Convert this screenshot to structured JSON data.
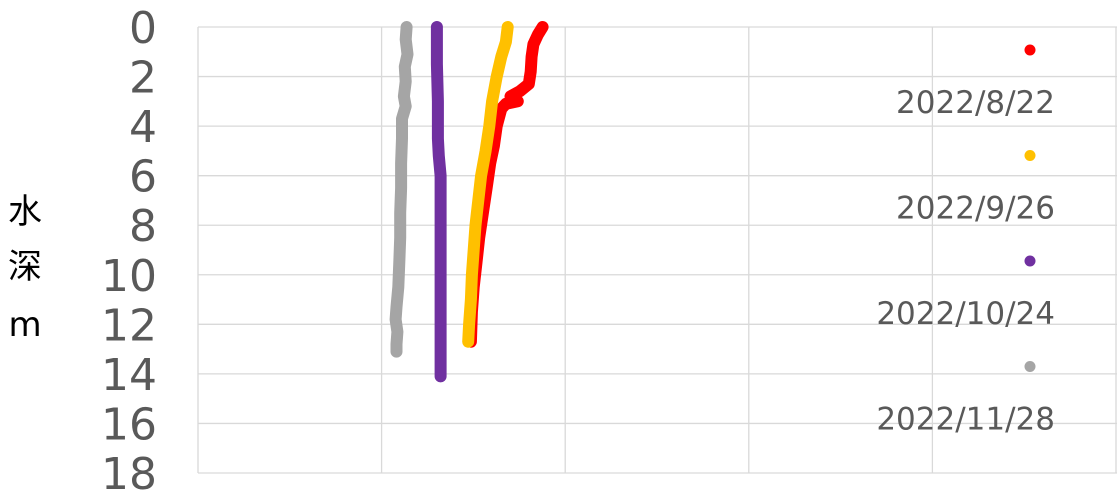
{
  "chart_data": {
    "type": "scatter",
    "ylabel": [
      "水",
      "深",
      "m"
    ],
    "ylim": [
      0,
      18
    ],
    "y_reversed": true,
    "y_ticks": [
      "0",
      "2",
      "4",
      "6",
      "8",
      "10",
      "12",
      "14",
      "16",
      "18"
    ],
    "x_ticks_shown": false,
    "grid": true,
    "legend_position": "right",
    "series": [
      {
        "name": "2022/8/22",
        "color": "#ff0000",
        "points": [
          [
            0.375,
            0
          ],
          [
            0.37,
            0.3
          ],
          [
            0.365,
            0.7
          ],
          [
            0.363,
            1.2
          ],
          [
            0.362,
            1.8
          ],
          [
            0.36,
            2.3
          ],
          [
            0.35,
            2.6
          ],
          [
            0.34,
            2.8
          ],
          [
            0.348,
            3.0
          ],
          [
            0.335,
            3.1
          ],
          [
            0.33,
            3.3
          ],
          [
            0.325,
            4.0
          ],
          [
            0.322,
            4.8
          ],
          [
            0.318,
            5.5
          ],
          [
            0.314,
            6.5
          ],
          [
            0.31,
            7.5
          ],
          [
            0.306,
            8.5
          ],
          [
            0.303,
            9.5
          ],
          [
            0.3,
            10.5
          ],
          [
            0.298,
            11.5
          ],
          [
            0.297,
            12.7
          ]
        ]
      },
      {
        "name": "2022/9/26",
        "color": "#ffc000",
        "points": [
          [
            0.337,
            0
          ],
          [
            0.335,
            0.6
          ],
          [
            0.33,
            1.2
          ],
          [
            0.325,
            2.0
          ],
          [
            0.32,
            3.0
          ],
          [
            0.317,
            4.0
          ],
          [
            0.313,
            5.0
          ],
          [
            0.308,
            6.0
          ],
          [
            0.305,
            7.0
          ],
          [
            0.302,
            8.0
          ],
          [
            0.3,
            9.0
          ],
          [
            0.298,
            10.0
          ],
          [
            0.297,
            11.0
          ],
          [
            0.295,
            12.0
          ],
          [
            0.294,
            12.7
          ]
        ]
      },
      {
        "name": "2022/10/24",
        "color": "#7030a0",
        "points": [
          [
            0.26,
            0
          ],
          [
            0.26,
            1.5
          ],
          [
            0.261,
            3.0
          ],
          [
            0.261,
            4.5
          ],
          [
            0.262,
            5.2
          ],
          [
            0.264,
            6.0
          ],
          [
            0.264,
            7.5
          ],
          [
            0.264,
            9.0
          ],
          [
            0.264,
            10.5
          ],
          [
            0.264,
            12.0
          ],
          [
            0.264,
            13.2
          ],
          [
            0.264,
            14.1
          ]
        ]
      },
      {
        "name": "2022/11/28",
        "color": "#a5a5a5",
        "points": [
          [
            0.227,
            0
          ],
          [
            0.226,
            0.5
          ],
          [
            0.228,
            1.1
          ],
          [
            0.225,
            1.6
          ],
          [
            0.226,
            2.2
          ],
          [
            0.224,
            2.8
          ],
          [
            0.226,
            3.2
          ],
          [
            0.222,
            3.7
          ],
          [
            0.222,
            4.5
          ],
          [
            0.221,
            5.5
          ],
          [
            0.221,
            6.5
          ],
          [
            0.22,
            7.5
          ],
          [
            0.22,
            8.5
          ],
          [
            0.219,
            9.5
          ],
          [
            0.218,
            10.5
          ],
          [
            0.216,
            11.3
          ],
          [
            0.215,
            11.8
          ],
          [
            0.217,
            12.3
          ],
          [
            0.216,
            12.8
          ],
          [
            0.216,
            13.1
          ]
        ]
      }
    ]
  }
}
